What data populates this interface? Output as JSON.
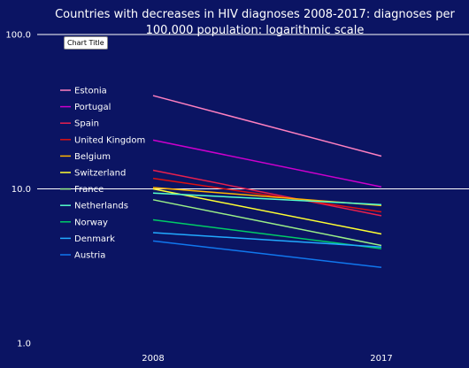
{
  "tooltip": "Chart Title",
  "chart_data": {
    "type": "line",
    "title_lines": [
      "Countries with decreases in HIV diagnoses 2008-2017: diagnoses per",
      "100,000 population: logarithmic scale"
    ],
    "categories": [
      "2008",
      "2017"
    ],
    "y_scale": "log",
    "ylim": [
      1,
      100
    ],
    "y_ticks": [
      {
        "value": 100,
        "label": "100.0"
      },
      {
        "value": 10,
        "label": "10.0"
      },
      {
        "value": 1,
        "label": "1.0"
      }
    ],
    "grid": true,
    "legend_position": "left",
    "series": [
      {
        "name": "Estonia",
        "color": "#ff80c0",
        "values": [
          40.2,
          16.3
        ]
      },
      {
        "name": "Portugal",
        "color": "#cc00cc",
        "values": [
          20.7,
          10.3
        ]
      },
      {
        "name": "Spain",
        "color": "#e8204e",
        "values": [
          13.2,
          6.7
        ]
      },
      {
        "name": "United Kingdom",
        "color": "#dd1111",
        "values": [
          11.7,
          7.1
        ]
      },
      {
        "name": "Belgium",
        "color": "#ffb300",
        "values": [
          10.2,
          7.8
        ]
      },
      {
        "name": "Switzerland",
        "color": "#ffff33",
        "values": [
          10.0,
          5.1
        ]
      },
      {
        "name": "France",
        "color": "#99ee88",
        "values": [
          8.5,
          4.3
        ]
      },
      {
        "name": "Netherlands",
        "color": "#55ffcc",
        "values": [
          9.4,
          7.9
        ]
      },
      {
        "name": "Norway",
        "color": "#00cc66",
        "values": [
          6.3,
          4.1
        ]
      },
      {
        "name": "Denmark",
        "color": "#22aaff",
        "values": [
          5.2,
          4.2
        ]
      },
      {
        "name": "Austria",
        "color": "#1177ee",
        "values": [
          4.6,
          3.1
        ]
      }
    ]
  }
}
